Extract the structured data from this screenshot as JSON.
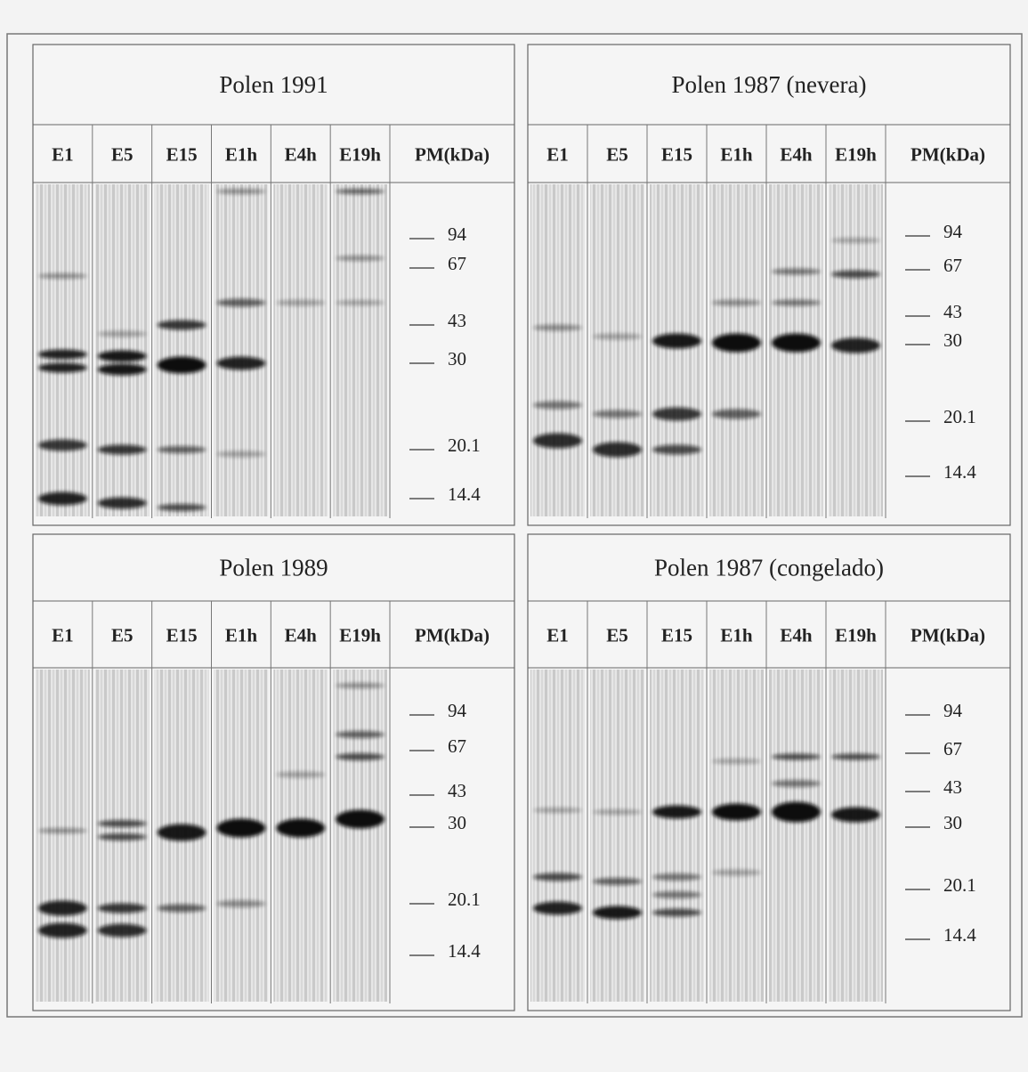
{
  "panels": [
    {
      "title": "Polen 1991",
      "lanes": [
        "E1",
        "E5",
        "E15",
        "E1h",
        "E4h",
        "E19h"
      ],
      "marker_header": "PM(kDa)",
      "markers": [
        94,
        67,
        43,
        30,
        20.1,
        14.4
      ]
    },
    {
      "title": "Polen 1987 (nevera)",
      "lanes": [
        "E1",
        "E5",
        "E15",
        "E1h",
        "E4h",
        "E19h"
      ],
      "marker_header": "PM(kDa)",
      "markers": [
        94,
        67,
        43,
        30,
        20.1,
        14.4
      ]
    },
    {
      "title": "Polen 1989",
      "lanes": [
        "E1",
        "E5",
        "E15",
        "E1h",
        "E4h",
        "E19h"
      ],
      "marker_header": "PM(kDa)",
      "markers": [
        94,
        67,
        43,
        30,
        20.1,
        14.4
      ]
    },
    {
      "title": "Polen 1987 (congelado)",
      "lanes": [
        "E1",
        "E5",
        "E15",
        "E1h",
        "E4h",
        "E19h"
      ],
      "marker_header": "PM(kDa)",
      "markers": [
        94,
        67,
        43,
        30,
        20.1,
        14.4
      ]
    }
  ]
}
